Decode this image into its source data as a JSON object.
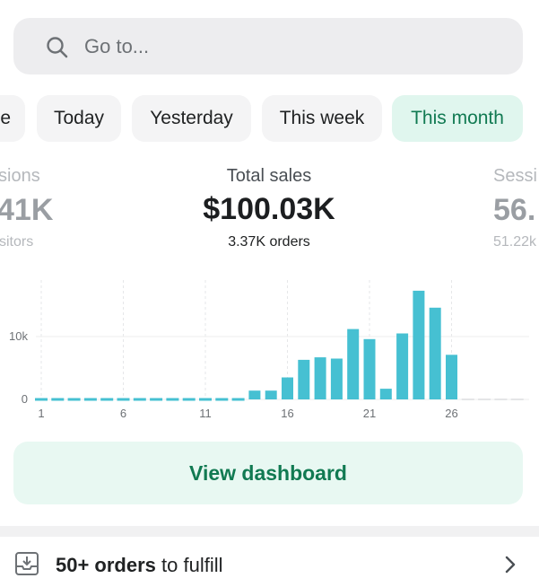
{
  "search": {
    "placeholder": "Go to..."
  },
  "date_tabs": [
    {
      "label": "e",
      "active": false
    },
    {
      "label": "Today",
      "active": false
    },
    {
      "label": "Yesterday",
      "active": false
    },
    {
      "label": "This week",
      "active": false
    },
    {
      "label": "This month",
      "active": true
    }
  ],
  "stats": {
    "left": {
      "label": "sions",
      "value": "41K",
      "sub": "sitors"
    },
    "center": {
      "label": "Total sales",
      "value": "$100.03K",
      "sub": "3.37K orders"
    },
    "right": {
      "label": "Sessi",
      "value": "56.",
      "sub": "51.22k"
    }
  },
  "chart_data": {
    "type": "bar",
    "x": [
      1,
      2,
      3,
      4,
      5,
      6,
      7,
      8,
      9,
      10,
      11,
      12,
      13,
      14,
      15,
      16,
      17,
      18,
      19,
      20,
      21,
      22,
      23,
      24,
      25,
      26,
      27,
      28,
      29,
      30
    ],
    "values": [
      0,
      0,
      0,
      0,
      0,
      0,
      0,
      0,
      0,
      0,
      0,
      0,
      0,
      1400,
      1400,
      3500,
      6300,
      6700,
      6500,
      11200,
      9600,
      1700,
      10500,
      17300,
      14600,
      7100,
      null,
      null,
      null,
      null
    ],
    "x_tick_labels": [
      "1",
      "6",
      "11",
      "16",
      "21",
      "26"
    ],
    "y_tick_labels": [
      "10k",
      "0"
    ],
    "ylim": [
      0,
      20000
    ],
    "bar_color": "#46c0d2",
    "future_color": "#e4e5e7",
    "grid": true
  },
  "dashboard": {
    "label": "View dashboard"
  },
  "orders": {
    "count": "50+ orders",
    "suffix": " to fulfill"
  },
  "colors": {
    "accent": "#117a52",
    "active_tab_bg": "#e0f6ee",
    "button_bg": "#e8f8f2"
  }
}
